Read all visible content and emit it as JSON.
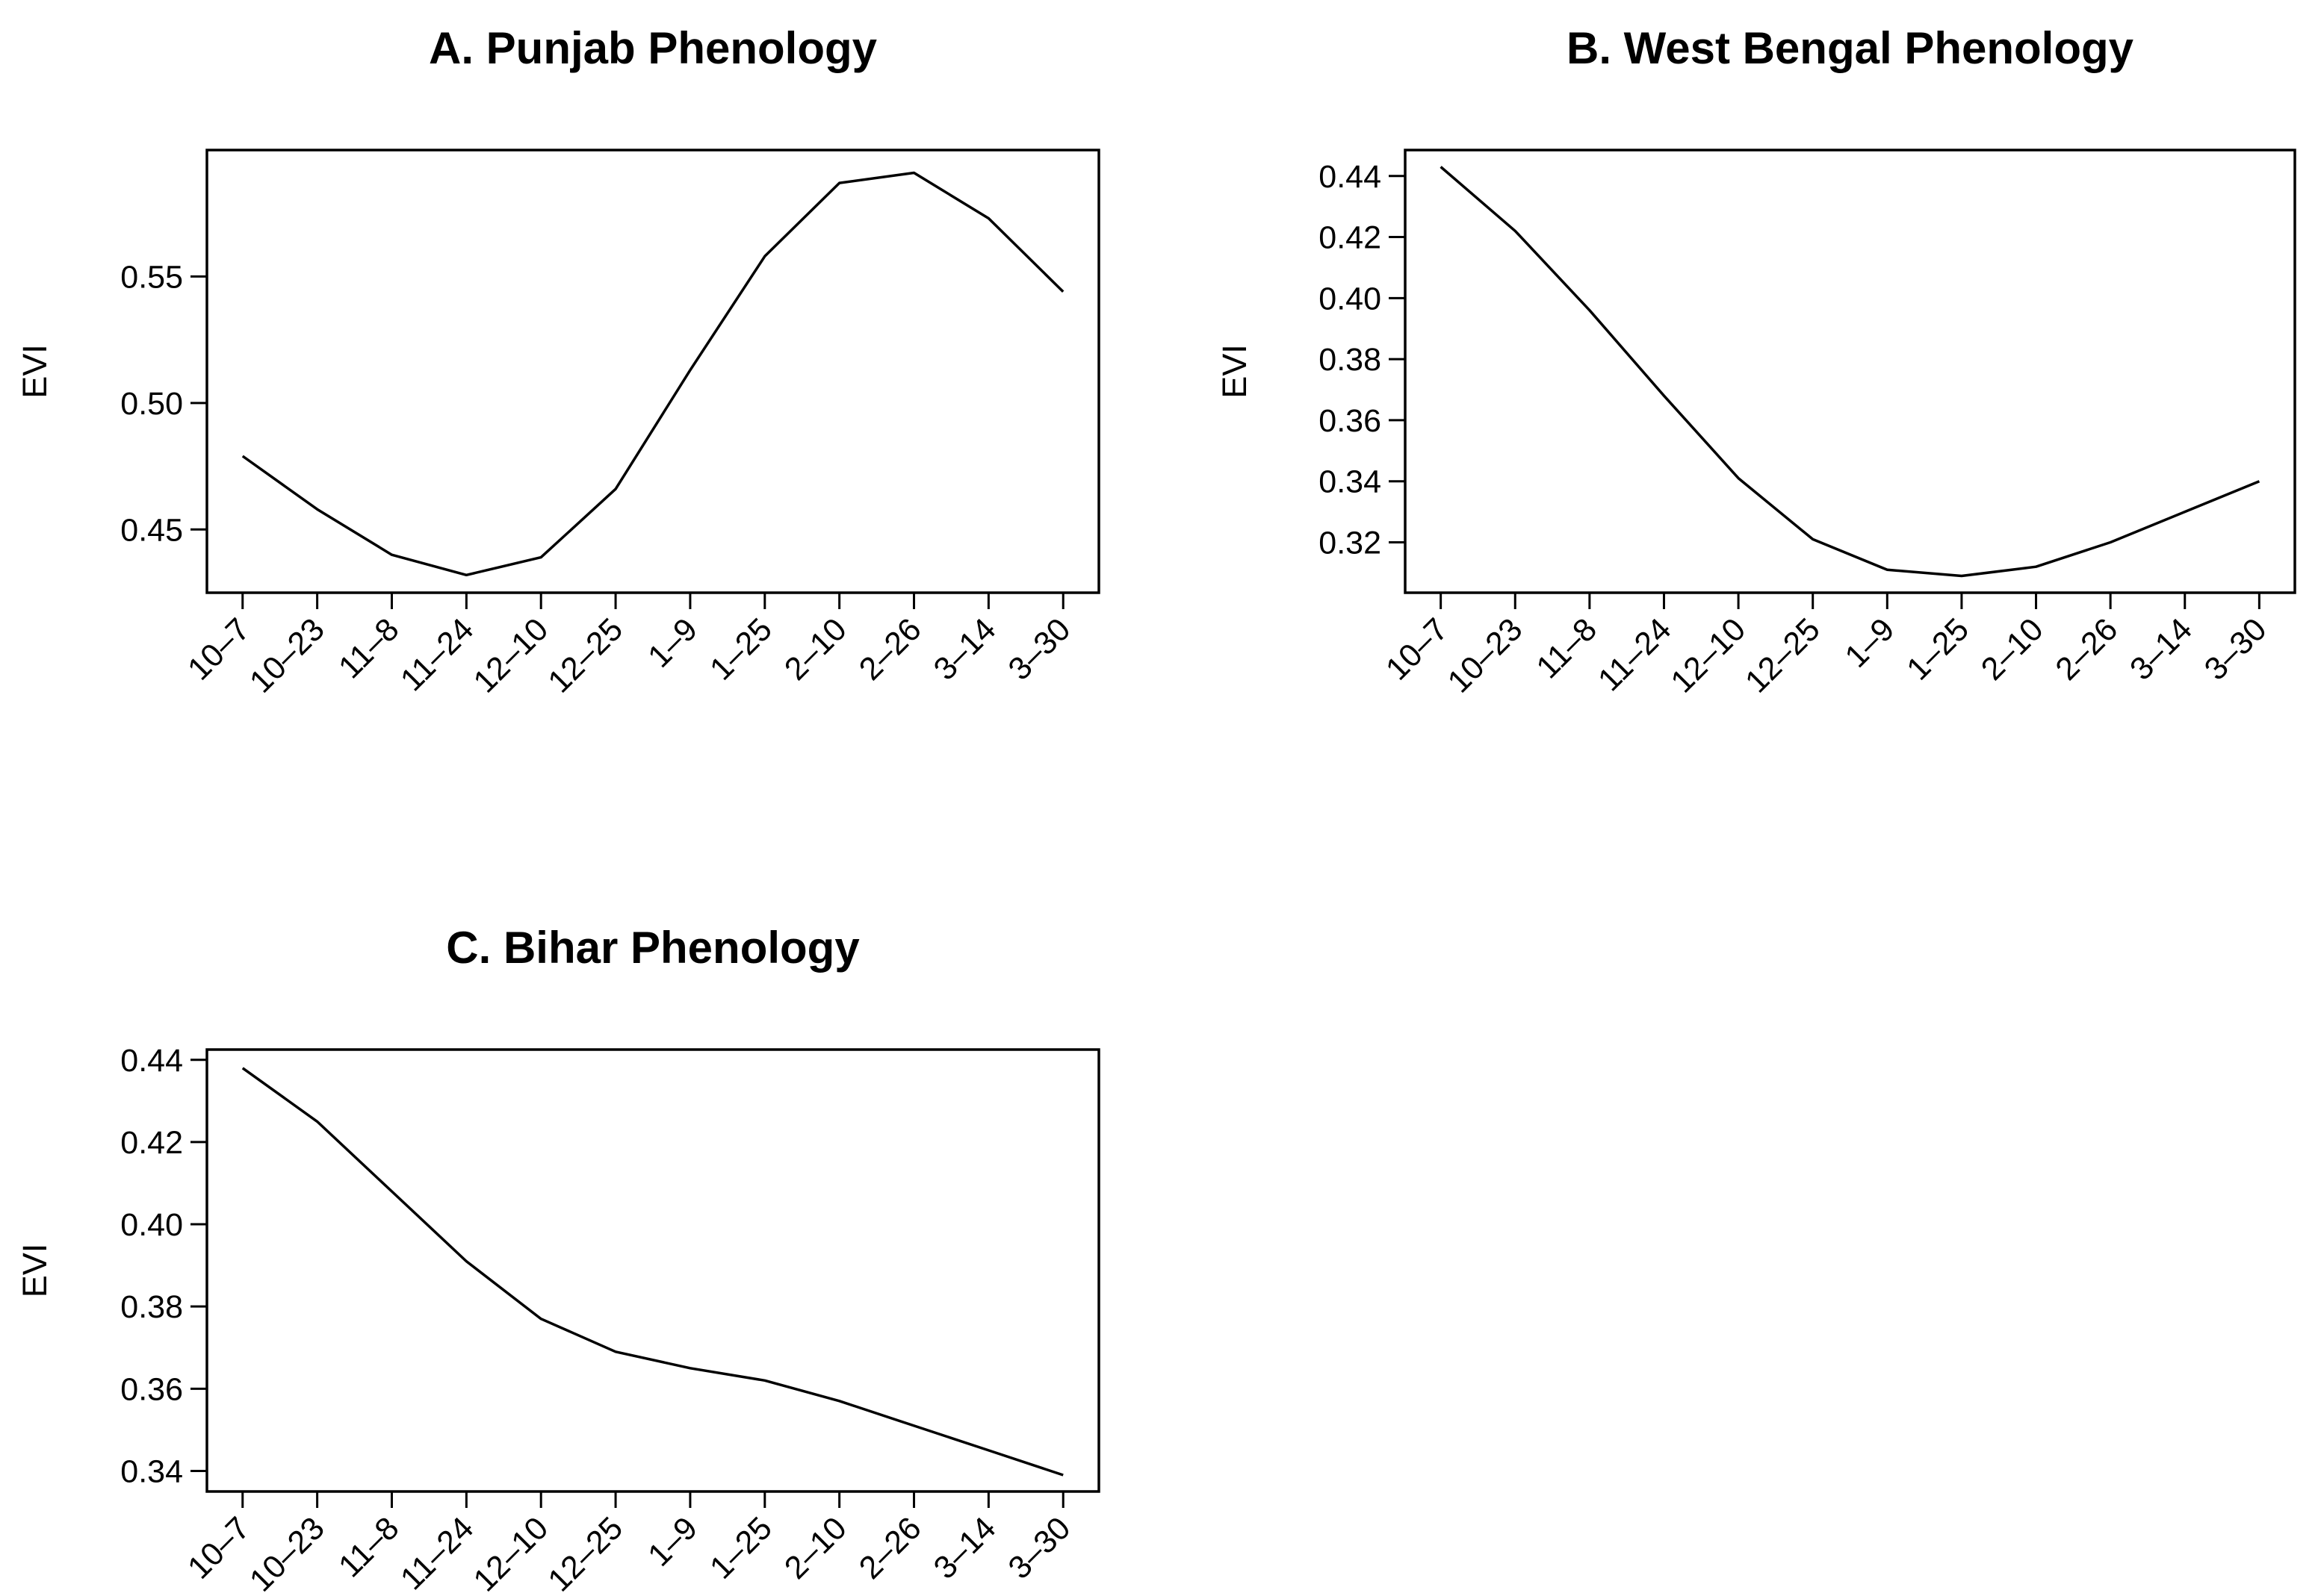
{
  "chart_data": [
    {
      "id": "punjab",
      "type": "line",
      "title": "A. Punjab Phenology",
      "xlabel": "",
      "ylabel": "EVI",
      "categories": [
        "10–7",
        "10–23",
        "11–8",
        "11–24",
        "12–10",
        "12–25",
        "1–9",
        "1–25",
        "2–10",
        "2–26",
        "3–14",
        "3–30"
      ],
      "ylim": [
        0.425,
        0.6
      ],
      "yticks": [
        0.45,
        0.5,
        0.55
      ],
      "ytick_labels": [
        "0.45",
        "0.50",
        "0.55"
      ],
      "series": [
        {
          "name": "EVI",
          "values": [
            0.479,
            0.458,
            0.44,
            0.432,
            0.439,
            0.466,
            0.513,
            0.558,
            0.587,
            0.591,
            0.573,
            0.544
          ]
        }
      ]
    },
    {
      "id": "westbengal",
      "type": "line",
      "title": "B. West Bengal Phenology",
      "xlabel": "",
      "ylabel": "EVI",
      "categories": [
        "10–7",
        "10–23",
        "11–8",
        "11–24",
        "12–10",
        "12–25",
        "1–9",
        "1–25",
        "2–10",
        "2–26",
        "3–14",
        "3–30"
      ],
      "ylim": [
        0.3035,
        0.4485
      ],
      "yticks": [
        0.32,
        0.34,
        0.36,
        0.38,
        0.4,
        0.42,
        0.44
      ],
      "ytick_labels": [
        "0.32",
        "0.34",
        "0.36",
        "0.38",
        "0.40",
        "0.42",
        "0.44"
      ],
      "series": [
        {
          "name": "EVI",
          "values": [
            0.443,
            0.422,
            0.396,
            0.368,
            0.341,
            0.321,
            0.311,
            0.309,
            0.312,
            0.32,
            0.33,
            0.34
          ]
        }
      ]
    },
    {
      "id": "bihar",
      "type": "line",
      "title": "C. Bihar Phenology",
      "xlabel": "",
      "ylabel": "EVI",
      "categories": [
        "10–7",
        "10–23",
        "11–8",
        "11–24",
        "12–10",
        "12–25",
        "1–9",
        "1–25",
        "2–10",
        "2–26",
        "3–14",
        "3–30"
      ],
      "ylim": [
        0.335,
        0.4425
      ],
      "yticks": [
        0.34,
        0.36,
        0.38,
        0.4,
        0.42,
        0.44
      ],
      "ytick_labels": [
        "0.34",
        "0.36",
        "0.38",
        "0.40",
        "0.42",
        "0.44"
      ],
      "series": [
        {
          "name": "EVI",
          "values": [
            0.438,
            0.425,
            0.408,
            0.391,
            0.377,
            0.369,
            0.365,
            0.362,
            0.357,
            0.351,
            0.345,
            0.339
          ]
        }
      ]
    }
  ]
}
